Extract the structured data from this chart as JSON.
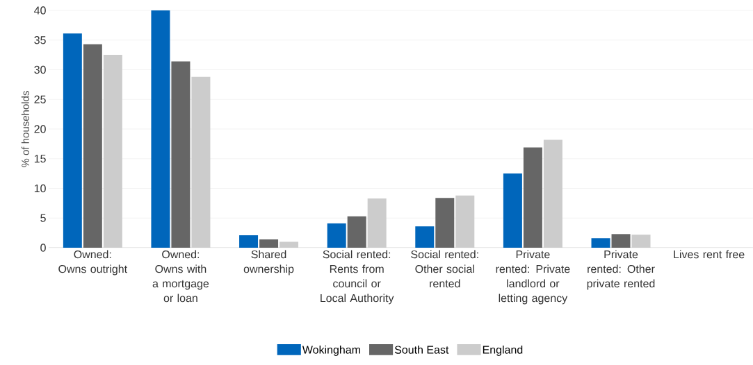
{
  "chart_data": {
    "type": "bar",
    "ylabel": "% of households",
    "categories": [
      "Owned: Owns outright",
      "Owned: Owns with a mortgage or loan",
      "Shared ownership",
      "Social rented: Rents from council or Local Authority",
      "Social rented: Other social rented",
      "Private rented: Private landlord or letting agency",
      "Private rented: Other private rented",
      "Lives rent free"
    ],
    "series": [
      {
        "name": "Wokingham",
        "color": "#0066bb",
        "values": [
          36.1,
          40.0,
          2.1,
          4.1,
          3.6,
          12.5,
          1.6,
          0
        ]
      },
      {
        "name": "South East",
        "color": "#666666",
        "values": [
          34.3,
          31.4,
          1.4,
          5.3,
          8.4,
          16.9,
          2.3,
          0
        ]
      },
      {
        "name": "England",
        "color": "#cccccc",
        "values": [
          32.5,
          28.8,
          1.0,
          8.3,
          8.8,
          18.2,
          2.2,
          0
        ]
      }
    ],
    "ylim": [
      0,
      40
    ],
    "yticks": [
      0,
      5,
      10,
      15,
      20,
      25,
      30,
      35,
      40
    ],
    "grid": "y",
    "legend": "bottom"
  }
}
